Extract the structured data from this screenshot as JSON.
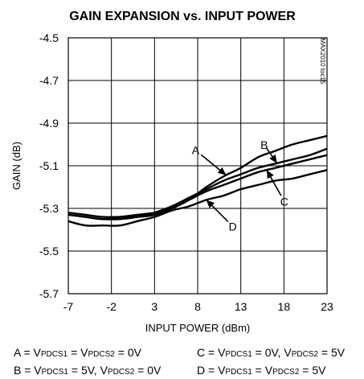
{
  "chart_data": {
    "type": "line",
    "title": "GAIN EXPANSION vs. INPUT POWER",
    "xlabel": "INPUT POWER (dBm)",
    "ylabel": "GAIN (dB)",
    "xlim": [
      -7,
      23
    ],
    "ylim": [
      -5.7,
      -4.5
    ],
    "x_ticks": [
      "-7",
      "-2",
      "3",
      "8",
      "13",
      "18",
      "23"
    ],
    "y_ticks": [
      "-4.5",
      "-4.7",
      "-4.9",
      "-5.1",
      "-5.3",
      "-5.5",
      "-5.7"
    ],
    "grid": true,
    "figure_code": "MAX2010 toc15",
    "series": [
      {
        "name": "A",
        "x": [
          -7,
          -5,
          -3,
          -1,
          1,
          3,
          5,
          7,
          9,
          11,
          13,
          15,
          17,
          19,
          21,
          23
        ],
        "y": [
          -5.32,
          -5.33,
          -5.34,
          -5.34,
          -5.34,
          -5.33,
          -5.3,
          -5.26,
          -5.2,
          -5.15,
          -5.11,
          -5.06,
          -5.03,
          -5.0,
          -4.98,
          -4.96
        ]
      },
      {
        "name": "B",
        "x": [
          -7,
          -5,
          -3,
          -1,
          1,
          3,
          5,
          7,
          9,
          11,
          13,
          15,
          17,
          19,
          21,
          23
        ],
        "y": [
          -5.33,
          -5.34,
          -5.35,
          -5.35,
          -5.34,
          -5.32,
          -5.29,
          -5.25,
          -5.21,
          -5.17,
          -5.14,
          -5.11,
          -5.09,
          -5.07,
          -5.05,
          -5.02
        ]
      },
      {
        "name": "C",
        "x": [
          -7,
          -5,
          -3,
          -1,
          1,
          3,
          5,
          7,
          9,
          11,
          13,
          15,
          17,
          19,
          21,
          23
        ],
        "y": [
          -5.33,
          -5.34,
          -5.35,
          -5.34,
          -5.33,
          -5.32,
          -5.3,
          -5.26,
          -5.22,
          -5.19,
          -5.16,
          -5.13,
          -5.11,
          -5.09,
          -5.07,
          -5.05
        ]
      },
      {
        "name": "D",
        "x": [
          -7,
          -5,
          -3,
          -1,
          1,
          3,
          5,
          7,
          9,
          11,
          13,
          15,
          17,
          19,
          21,
          23
        ],
        "y": [
          -5.36,
          -5.38,
          -5.38,
          -5.38,
          -5.36,
          -5.34,
          -5.31,
          -5.29,
          -5.26,
          -5.24,
          -5.21,
          -5.19,
          -5.17,
          -5.16,
          -5.14,
          -5.12
        ]
      }
    ],
    "annotations": [
      {
        "label": "A",
        "series": "A",
        "x": 11.3
      },
      {
        "label": "B",
        "series": "B",
        "x": 17.2
      },
      {
        "label": "C",
        "series": "C",
        "x": 16.0
      },
      {
        "label": "D",
        "series": "D",
        "x": 9.0
      }
    ],
    "legend_notes": [
      {
        "key": "A",
        "parts": [
          [
            "A = V",
            ""
          ],
          [
            "PDCS1",
            "sub"
          ],
          [
            " = V",
            ""
          ],
          [
            "PDCS2",
            "sub"
          ],
          [
            " = 0V",
            ""
          ]
        ]
      },
      {
        "key": "C",
        "parts": [
          [
            "C = V",
            ""
          ],
          [
            "PDCS1",
            "sub"
          ],
          [
            " = 0V, V",
            ""
          ],
          [
            "PDCS2",
            "sub"
          ],
          [
            " = 5V",
            ""
          ]
        ]
      },
      {
        "key": "B",
        "parts": [
          [
            "B = V",
            ""
          ],
          [
            "PDCS1",
            "sub"
          ],
          [
            " = 5V, V",
            ""
          ],
          [
            "PDCS2",
            "sub"
          ],
          [
            " = 0V",
            ""
          ]
        ]
      },
      {
        "key": "D",
        "parts": [
          [
            "D = V",
            ""
          ],
          [
            "PDCS1",
            "sub"
          ],
          [
            " = V",
            ""
          ],
          [
            "PDCS2",
            "sub"
          ],
          [
            " = 5V",
            ""
          ]
        ]
      }
    ]
  }
}
